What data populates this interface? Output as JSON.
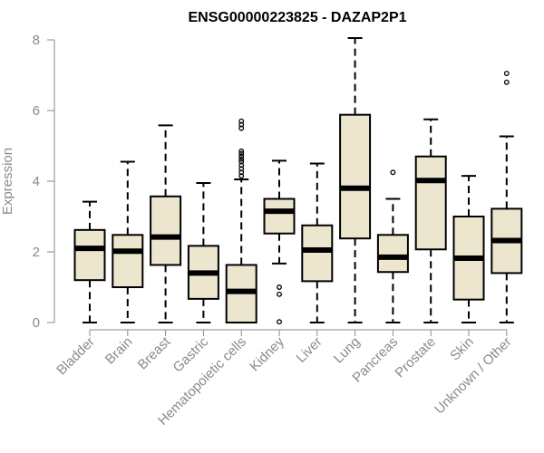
{
  "chart_data": {
    "type": "box",
    "title": "ENSG00000223825 - DAZAP2P1",
    "xlabel": "",
    "ylabel": "Expression",
    "ylim": [
      0,
      8
    ],
    "yticks": [
      0,
      2,
      4,
      6,
      8
    ],
    "grid": false,
    "legend": "none",
    "colors": {
      "box_fill": "#ede6cf",
      "box_stroke": "#000000",
      "median": "#000000",
      "axis": "#8a8a8a",
      "axis_text": "#8a8a8a"
    },
    "categories": [
      "Bladder",
      "Brain",
      "Breast",
      "Gastric",
      "Hematopoietic cells",
      "Kidney",
      "Liver",
      "Lung",
      "Pancreas",
      "Prostate",
      "Skin",
      "Unknown / Other"
    ],
    "boxes": [
      {
        "whisker_low": 0.0,
        "q1": 1.2,
        "median": 2.1,
        "q3": 2.62,
        "whisker_high": 3.42,
        "outliers": []
      },
      {
        "whisker_low": 0.0,
        "q1": 1.0,
        "median": 2.02,
        "q3": 2.48,
        "whisker_high": 4.55,
        "outliers": []
      },
      {
        "whisker_low": 0.0,
        "q1": 1.63,
        "median": 2.42,
        "q3": 3.57,
        "whisker_high": 5.58,
        "outliers": []
      },
      {
        "whisker_low": 0.0,
        "q1": 0.67,
        "median": 1.4,
        "q3": 2.17,
        "whisker_high": 3.95,
        "outliers": []
      },
      {
        "whisker_low": 0.0,
        "q1": 0.0,
        "median": 0.88,
        "q3": 1.63,
        "whisker_high": 4.05,
        "outliers": [
          4.15,
          4.25,
          4.35,
          4.45,
          4.55,
          4.62,
          4.7,
          4.78,
          4.85,
          5.5,
          5.6,
          5.7
        ]
      },
      {
        "whisker_low": 1.67,
        "q1": 2.52,
        "median": 3.15,
        "q3": 3.5,
        "whisker_high": 4.58,
        "outliers": [
          1.0,
          0.8,
          0.02
        ]
      },
      {
        "whisker_low": 0.0,
        "q1": 1.17,
        "median": 2.05,
        "q3": 2.75,
        "whisker_high": 4.5,
        "outliers": []
      },
      {
        "whisker_low": 0.0,
        "q1": 2.38,
        "median": 3.8,
        "q3": 5.88,
        "whisker_high": 8.05,
        "outliers": []
      },
      {
        "whisker_low": 0.0,
        "q1": 1.43,
        "median": 1.85,
        "q3": 2.48,
        "whisker_high": 3.5,
        "outliers": [
          4.25
        ]
      },
      {
        "whisker_low": 0.0,
        "q1": 2.07,
        "median": 4.02,
        "q3": 4.7,
        "whisker_high": 5.75,
        "outliers": []
      },
      {
        "whisker_low": 0.0,
        "q1": 0.65,
        "median": 1.82,
        "q3": 3.0,
        "whisker_high": 4.15,
        "outliers": []
      },
      {
        "whisker_low": 0.0,
        "q1": 1.4,
        "median": 2.32,
        "q3": 3.22,
        "whisker_high": 5.27,
        "outliers": [
          6.8,
          7.05
        ]
      }
    ]
  }
}
